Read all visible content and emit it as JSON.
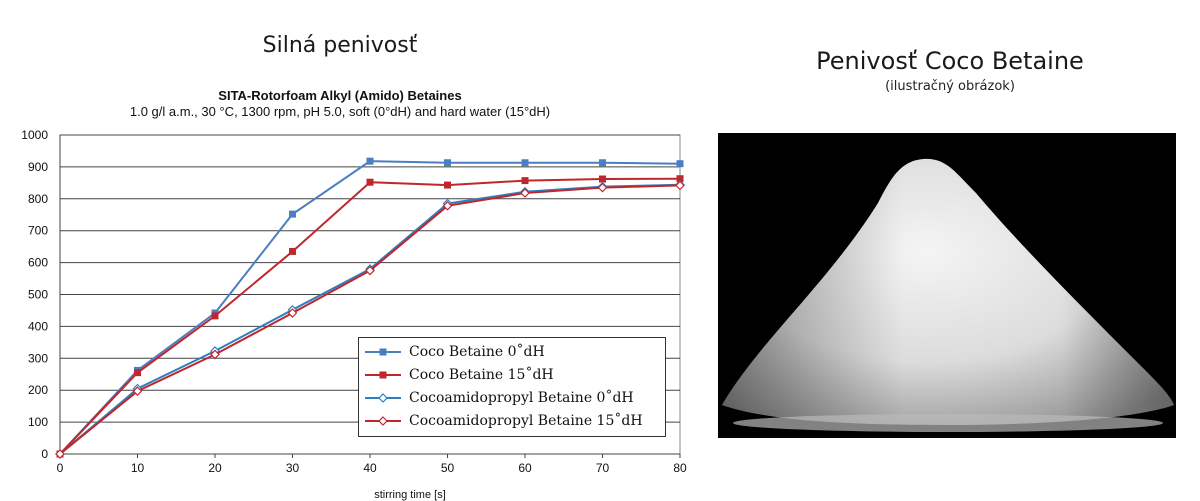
{
  "headings": {
    "left": "Silná penivosť",
    "right": "Penivosť Coco Betaine",
    "right_sub": "(ilustračný obrázok)"
  },
  "photo": {
    "subject": "foam-pile",
    "background": "#000000"
  },
  "chart_data": {
    "type": "line",
    "title": "SITA-Rotorfoam Alkyl (Amido) Betaines",
    "subtitle": "1.0 g/l a.m., 30 °C, 1300 rpm, pH 5.0, soft  (0°dH) and hard water (15°dH)",
    "xlabel": "stirring time [s]",
    "ylabel": "",
    "x": [
      0,
      10,
      20,
      30,
      40,
      50,
      60,
      70,
      80
    ],
    "xlim": [
      0,
      80
    ],
    "ylim": [
      0,
      1000
    ],
    "xticks": [
      "0",
      "10",
      "20",
      "30",
      "40",
      "50",
      "60",
      "70",
      "80"
    ],
    "yticks": [
      "0",
      "100",
      "200",
      "300",
      "400",
      "500",
      "600",
      "700",
      "800",
      "900",
      "1000"
    ],
    "grid": "horizontal",
    "legend_position": "bottom-right",
    "series": [
      {
        "name": "Coco Betaine 0˚dH",
        "color": "#4a7fc1",
        "marker": "filled-square",
        "values": [
          0,
          262,
          442,
          752,
          918,
          913,
          913,
          913,
          910
        ]
      },
      {
        "name": "Coco Betaine 15˚dH",
        "color": "#c0272d",
        "marker": "filled-square",
        "values": [
          0,
          255,
          433,
          635,
          852,
          843,
          857,
          862,
          863
        ]
      },
      {
        "name": "Cocoamidopropyl Betaine 0˚dH",
        "color": "#2f7fc0",
        "marker": "open-diamond",
        "values": [
          0,
          205,
          323,
          452,
          580,
          785,
          822,
          838,
          844
        ]
      },
      {
        "name": "Cocoamidopropyl Betaine 15˚dH",
        "color": "#c0272d",
        "marker": "open-diamond",
        "values": [
          0,
          197,
          312,
          442,
          575,
          778,
          818,
          835,
          842
        ]
      }
    ]
  }
}
